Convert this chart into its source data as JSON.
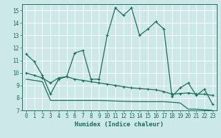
{
  "bg_color": "#cce8e8",
  "grid_color": "#aad4d4",
  "line_color": "#1a6b5a",
  "xlabel": "Humidex (Indice chaleur)",
  "ylim": [
    7,
    15.5
  ],
  "xlim": [
    -0.5,
    23.5
  ],
  "yticks": [
    7,
    8,
    9,
    10,
    11,
    12,
    13,
    14,
    15
  ],
  "xticks": [
    0,
    1,
    2,
    3,
    4,
    5,
    6,
    7,
    8,
    9,
    10,
    11,
    12,
    13,
    14,
    15,
    16,
    17,
    18,
    19,
    20,
    21,
    22,
    23
  ],
  "line1_x": [
    0,
    1,
    2,
    3,
    4,
    5,
    6,
    7,
    8,
    9,
    10,
    11,
    12,
    13,
    14,
    15,
    16,
    17,
    18,
    19,
    20,
    21,
    22,
    23
  ],
  "line1_y": [
    11.5,
    10.9,
    9.8,
    8.3,
    9.5,
    9.7,
    11.6,
    11.8,
    9.5,
    9.5,
    13.0,
    15.2,
    14.6,
    15.2,
    13.0,
    13.5,
    14.1,
    13.5,
    8.1,
    8.8,
    9.2,
    8.2,
    8.7,
    7.5
  ],
  "line2_x": [
    0,
    1,
    2,
    3,
    4,
    5,
    6,
    7,
    8,
    9,
    10,
    11,
    12,
    13,
    14,
    15,
    16,
    17,
    18,
    19,
    20,
    21,
    22,
    23
  ],
  "line2_y": [
    10.0,
    9.8,
    9.6,
    9.2,
    9.6,
    9.7,
    9.5,
    9.4,
    9.3,
    9.2,
    9.1,
    9.0,
    8.9,
    8.8,
    8.75,
    8.7,
    8.65,
    8.5,
    8.3,
    8.35,
    8.4,
    8.3,
    8.3,
    8.2
  ],
  "line3_x": [
    0,
    1,
    2,
    3,
    4,
    5,
    6,
    7,
    8,
    9,
    10,
    11,
    12,
    13,
    14,
    15,
    16,
    17,
    18,
    19,
    20,
    21,
    22,
    23
  ],
  "line3_y": [
    9.5,
    9.4,
    9.3,
    7.8,
    7.8,
    7.8,
    7.8,
    7.8,
    7.8,
    7.8,
    7.78,
    7.75,
    7.73,
    7.71,
    7.7,
    7.7,
    7.7,
    7.7,
    7.65,
    7.6,
    7.1,
    7.1,
    7.05,
    7.0
  ],
  "linewidth": 0.9,
  "markersize": 3.5,
  "xlabel_fontsize": 6.5,
  "tick_fontsize": 5.5
}
